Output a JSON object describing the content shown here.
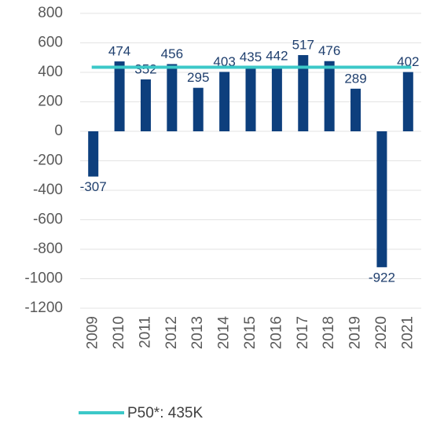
{
  "chart_data": {
    "type": "bar",
    "categories": [
      "2009",
      "2010",
      "2011",
      "2012",
      "2013",
      "2014",
      "2015",
      "2016",
      "2017",
      "2018",
      "2019",
      "2020",
      "2021"
    ],
    "series": [
      {
        "values": [
          -307,
          474,
          352,
          456,
          295,
          403,
          435,
          442,
          517,
          476,
          289,
          -922,
          402
        ],
        "color": "#0d3f7d"
      }
    ],
    "reference_line": {
      "name": "P50*: 435K",
      "value": 435,
      "color": "#3cc8c8"
    },
    "ylim": [
      -1200,
      800
    ],
    "yticks": [
      -1200,
      -1000,
      -800,
      -600,
      -400,
      -200,
      0,
      200,
      400,
      600,
      800
    ],
    "grid": true
  }
}
